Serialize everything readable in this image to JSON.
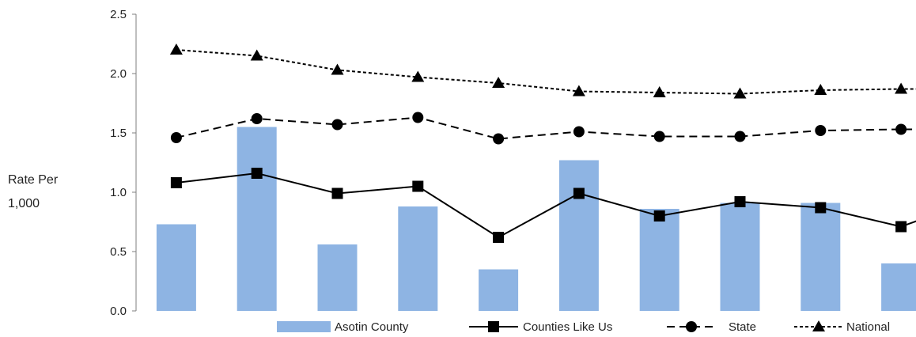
{
  "chart_data": {
    "type": "bar",
    "title": "",
    "xlabel": "",
    "ylabel_line1": "Rate Per",
    "ylabel_line2": "1,000",
    "ylim": [
      0,
      2.5
    ],
    "yticks": [
      "0.0",
      "0.5",
      "1.0",
      "1.5",
      "2.0",
      "2.5"
    ],
    "ytick_values": [
      0,
      0.5,
      1.0,
      1.5,
      2.0,
      2.5
    ],
    "categories_count": 10,
    "grid": false,
    "legend_position": "bottom",
    "series": [
      {
        "name": "Asotin County",
        "kind": "bar",
        "color": "#8eb4e3",
        "values": [
          0.73,
          1.55,
          0.56,
          0.88,
          0.35,
          1.27,
          0.86,
          0.91,
          0.91,
          0.4
        ]
      },
      {
        "name": "Counties Like Us",
        "kind": "line",
        "style": "solid",
        "marker": "square",
        "color": "#000000",
        "values": [
          1.08,
          1.16,
          0.99,
          1.05,
          0.62,
          0.99,
          0.8,
          0.92,
          0.87,
          0.71
        ]
      },
      {
        "name": "State",
        "kind": "line",
        "style": "dashed",
        "marker": "circle",
        "color": "#000000",
        "values": [
          1.46,
          1.62,
          1.57,
          1.63,
          1.45,
          1.51,
          1.47,
          1.47,
          1.52,
          1.53
        ]
      },
      {
        "name": "National",
        "kind": "line",
        "style": "dotted",
        "marker": "triangle",
        "color": "#000000",
        "values": [
          2.2,
          2.15,
          2.03,
          1.97,
          1.92,
          1.85,
          1.84,
          1.83,
          1.86,
          1.87
        ]
      }
    ]
  }
}
